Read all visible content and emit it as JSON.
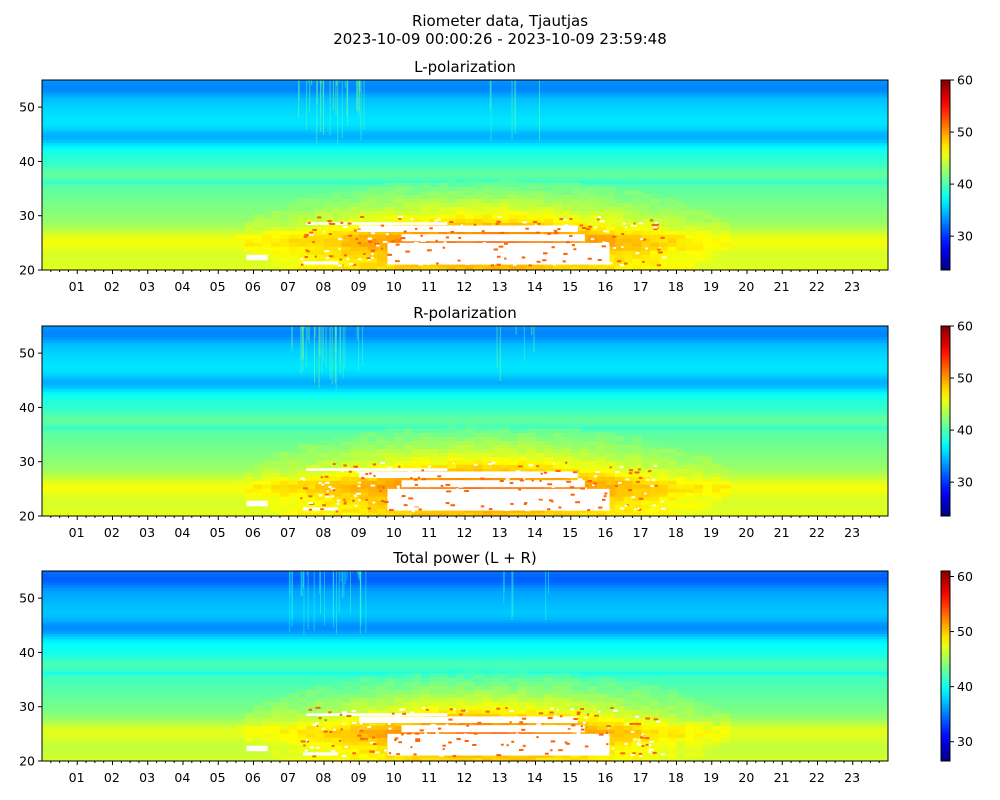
{
  "figure": {
    "title_line1": "Riometer data, Tjautjas",
    "title_line2": "2023-10-09 00:00:26 - 2023-10-09 23:59:48"
  },
  "colormap": "jet",
  "chart_data": [
    {
      "type": "heatmap",
      "title": "L-polarization",
      "x_tick_labels": [
        "01",
        "02",
        "03",
        "04",
        "05",
        "06",
        "07",
        "08",
        "09",
        "10",
        "11",
        "12",
        "13",
        "14",
        "15",
        "16",
        "17",
        "18",
        "19",
        "20",
        "21",
        "22",
        "23"
      ],
      "x_range_hours": [
        0,
        24
      ],
      "y_range": [
        20,
        55
      ],
      "y_ticks": [
        20,
        30,
        40,
        50
      ],
      "color_range": [
        23.5,
        60
      ],
      "colorbar_ticks": [
        30,
        40,
        50,
        60
      ],
      "saturated_region": {
        "hours": [
          9.8,
          16.1
        ],
        "y": [
          20.5,
          29.5
        ]
      }
    },
    {
      "type": "heatmap",
      "title": "R-polarization",
      "x_tick_labels": [
        "01",
        "02",
        "03",
        "04",
        "05",
        "06",
        "07",
        "08",
        "09",
        "10",
        "11",
        "12",
        "13",
        "14",
        "15",
        "16",
        "17",
        "18",
        "19",
        "20",
        "21",
        "22",
        "23"
      ],
      "x_range_hours": [
        0,
        24
      ],
      "y_range": [
        20,
        55
      ],
      "y_ticks": [
        20,
        30,
        40,
        50
      ],
      "color_range": [
        23.5,
        60
      ],
      "colorbar_ticks": [
        30,
        40,
        50,
        60
      ],
      "saturated_region": {
        "hours": [
          9.8,
          16.1
        ],
        "y": [
          20.5,
          29.5
        ]
      }
    },
    {
      "type": "heatmap",
      "title": "Total power (L + R)",
      "x_tick_labels": [
        "01",
        "02",
        "03",
        "04",
        "05",
        "06",
        "07",
        "08",
        "09",
        "10",
        "11",
        "12",
        "13",
        "14",
        "15",
        "16",
        "17",
        "18",
        "19",
        "20",
        "21",
        "22",
        "23"
      ],
      "x_range_hours": [
        0,
        24
      ],
      "y_range": [
        20,
        55
      ],
      "y_ticks": [
        20,
        30,
        40,
        50
      ],
      "color_range": [
        26.5,
        61
      ],
      "colorbar_ticks": [
        30,
        40,
        50,
        60
      ],
      "saturated_region": {
        "hours": [
          9.8,
          16.1
        ],
        "y": [
          20.5,
          29.5
        ]
      }
    }
  ]
}
